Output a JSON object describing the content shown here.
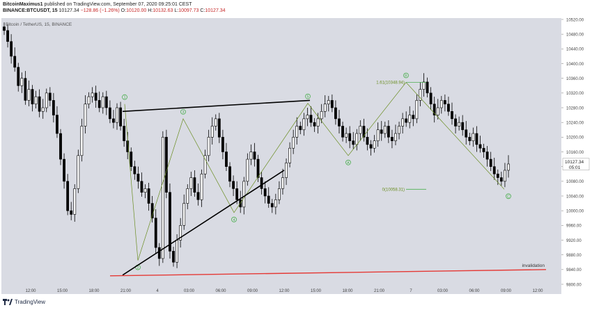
{
  "header": {
    "author": "BitcoinMaximus1",
    "published": "published on TradingView.com, September 07, 2020 09:25:01 CEST",
    "symbol": "BINANCE:BTCUSDT, 15",
    "last": "10127.34",
    "change": "−128.86 (−1.26%)",
    "o_label": "O:",
    "o_val": "10120.00",
    "h_label": "H:",
    "h_val": "10132.63",
    "l_label": "L:",
    "l_val": "10097.73",
    "c_label": "C:",
    "c_val": "10127.34"
  },
  "footer": {
    "brand": "TradingView"
  },
  "colors": {
    "background": "#d9dbe3",
    "candle": "#000000",
    "wave": "#4caf50",
    "wave_line": "#6b8e23",
    "trendline": "#000000",
    "invalidation": "#e53935"
  },
  "chart_data": {
    "type": "candlestick",
    "title": "Bitcoin / TetherUS, 15, BINANCE",
    "ylim": [
      9800,
      10520
    ],
    "y_ticks": [
      "10520.00",
      "10480.00",
      "10440.00",
      "10400.00",
      "10360.00",
      "10320.00",
      "10280.00",
      "10240.00",
      "10200.00",
      "10160.00",
      "10120.00",
      "10080.00",
      "10040.00",
      "10000.00",
      "9960.00",
      "9920.00",
      "9880.00",
      "9840.00",
      "9800.00"
    ],
    "x_ticks": [
      "12:00",
      "15:00",
      "18:00",
      "21:00",
      "4",
      "03:00",
      "06:00",
      "09:00",
      "12:00",
      "15:00",
      "18:00",
      "21:00",
      "7",
      "03:00",
      "06:00",
      "09:00",
      "12:00"
    ],
    "last_price_label": "10127.34",
    "countdown_label": "05:01",
    "close_series": [
      10490,
      10460,
      10420,
      10390,
      10340,
      10360,
      10300,
      10330,
      10290,
      10310,
      10270,
      10280,
      10320,
      10300,
      10260,
      10210,
      10140,
      10080,
      10000,
      9990,
      10060,
      10150,
      10230,
      10290,
      10310,
      10320,
      10300,
      10280,
      10310,
      10280,
      10250,
      10240,
      10280,
      10230,
      10190,
      10160,
      10120,
      10100,
      10080,
      10050,
      10060,
      10020,
      9980,
      9900,
      9870,
      10200,
      10050,
      9890,
      9860,
      9920,
      9960,
      10020,
      10060,
      10090,
      10050,
      10030,
      10100,
      10150,
      10200,
      10230,
      10250,
      10200,
      10160,
      10120,
      10080,
      10060,
      10030,
      10010,
      10080,
      10140,
      10160,
      10140,
      10090,
      10060,
      10040,
      10020,
      10010,
      10030,
      10060,
      10090,
      10130,
      10170,
      10200,
      10230,
      10220,
      10250,
      10260,
      10240,
      10230,
      10250,
      10270,
      10290,
      10300,
      10280,
      10250,
      10230,
      10200,
      10210,
      10190,
      10180,
      10210,
      10230,
      10200,
      10180,
      10170,
      10190,
      10220,
      10210,
      10230,
      10200,
      10190,
      10210,
      10230,
      10250,
      10240,
      10260,
      10250,
      10300,
      10330,
      10350,
      10320,
      10290,
      10260,
      10280,
      10300,
      10290,
      10270,
      10250,
      10230,
      10240,
      10220,
      10200,
      10190,
      10210,
      10180,
      10170,
      10160,
      10140,
      10120,
      10100,
      10090,
      10080,
      10110,
      10127
    ],
    "waves": [
      {
        "label": "1",
        "price": 10290
      },
      {
        "label": "2",
        "price": 9865
      },
      {
        "label": "3",
        "price": 10250
      },
      {
        "label": "4",
        "price": 9995
      },
      {
        "label": "5",
        "price": 10292
      },
      {
        "label": "A",
        "price": 10150
      },
      {
        "label": "B",
        "price": 10348.94
      },
      {
        "label": "C",
        "price": 10058.31
      }
    ],
    "annotations": [
      {
        "text": "1.61(10348.94)",
        "price": 10348.94
      },
      {
        "text": "0(10058.31)",
        "price": 10058.31
      },
      {
        "text": "invalidation",
        "price": 9840
      }
    ]
  }
}
